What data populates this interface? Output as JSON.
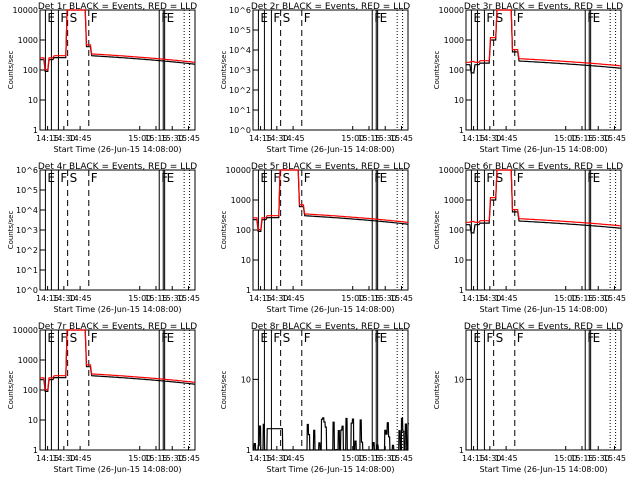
{
  "chart_data": [
    {
      "type": "line",
      "title": "Det 1r BLACK = Events, RED = LLD",
      "ylabel": "Counts/sec",
      "xlabel": "Start Time (26-Jun-15 14:08:00)",
      "x_ticks": [
        "14:15",
        "14:30",
        "14:45",
        "15:00",
        "15:15",
        "15:30",
        "15:45"
      ],
      "y_ticks": [
        "1",
        "10",
        "100",
        "1000",
        "10000"
      ],
      "y_scale": "log",
      "ylim": [
        1,
        10000
      ],
      "xlim_minutes": [
        14.15,
        15.48
      ],
      "flag_labels": [
        "E",
        "F",
        "S",
        "F",
        "F",
        "E"
      ],
      "profile": "flare",
      "series": [
        {
          "color": "#000000",
          "values": "events"
        },
        {
          "color": "#ff0000",
          "values": "lld"
        }
      ]
    },
    {
      "type": "line",
      "title": "Det 2r BLACK = Events, RED = LLD",
      "ylabel": "Counts/sec",
      "xlabel": "Start Time (26-Jun-15 14:08:00)",
      "x_ticks": [
        "14:15",
        "14:30",
        "14:45",
        "15:00",
        "15:15",
        "15:30",
        "15:45"
      ],
      "y_ticks": [
        "10^0",
        "10^1",
        "10^2",
        "10^3",
        "10^4",
        "10^5",
        "10^6"
      ],
      "y_scale": "log",
      "ylim": [
        1,
        1000000
      ],
      "flag_labels": [
        "E",
        "F",
        "S",
        "F",
        "F",
        "E"
      ],
      "profile": "empty",
      "series": []
    },
    {
      "type": "line",
      "title": "Det 3r BLACK = Events, RED = LLD",
      "ylabel": "Counts/sec",
      "xlabel": "Start Time (26-Jun-15 14:08:00)",
      "x_ticks": [
        "14:15",
        "14:30",
        "14:45",
        "15:00",
        "15:15",
        "15:30",
        "15:45"
      ],
      "y_ticks": [
        "1",
        "10",
        "100",
        "1000",
        "10000"
      ],
      "y_scale": "log",
      "ylim": [
        1,
        10000
      ],
      "flag_labels": [
        "E",
        "F",
        "S",
        "F",
        "F",
        "E"
      ],
      "profile": "high"
    },
    {
      "type": "line",
      "title": "Det 4r BLACK = Events, RED = LLD",
      "ylabel": "Counts/sec",
      "xlabel": "Start Time (26-Jun-15 14:08:00)",
      "x_ticks": [
        "14:15",
        "14:30",
        "14:45",
        "15:00",
        "15:15",
        "15:30",
        "15:45"
      ],
      "y_ticks": [
        "10^0",
        "10^1",
        "10^2",
        "10^3",
        "10^4",
        "10^5",
        "10^6"
      ],
      "y_scale": "log",
      "ylim": [
        1,
        1000000
      ],
      "flag_labels": [
        "E",
        "F",
        "S",
        "F",
        "F",
        "E"
      ],
      "profile": "empty",
      "series": []
    },
    {
      "type": "line",
      "title": "Det 5r BLACK = Events, RED = LLD",
      "ylabel": "Counts/sec",
      "xlabel": "Start Time (26-Jun-15 14:08:00)",
      "x_ticks": [
        "14:15",
        "14:30",
        "14:45",
        "15:00",
        "15:15",
        "15:30",
        "15:45"
      ],
      "y_ticks": [
        "1",
        "10",
        "100",
        "1000",
        "10000"
      ],
      "y_scale": "log",
      "ylim": [
        1,
        10000
      ],
      "flag_labels": [
        "E",
        "F",
        "S",
        "F",
        "F",
        "E"
      ],
      "profile": "flare"
    },
    {
      "type": "line",
      "title": "Det 6r BLACK = Events, RED = LLD",
      "ylabel": "Counts/sec",
      "xlabel": "Start Time (26-Jun-15 14:08:00)",
      "x_ticks": [
        "14:15",
        "14:30",
        "14:45",
        "15:00",
        "15:15",
        "15:30",
        "15:45"
      ],
      "y_ticks": [
        "1",
        "10",
        "100",
        "1000",
        "10000"
      ],
      "y_scale": "log",
      "ylim": [
        1,
        10000
      ],
      "flag_labels": [
        "E",
        "F",
        "S",
        "F",
        "F",
        "E"
      ],
      "profile": "high"
    },
    {
      "type": "line",
      "title": "Det 7r BLACK = Events, RED = LLD",
      "ylabel": "Counts/sec",
      "xlabel": "Start Time (26-Jun-15 14:08:00)",
      "x_ticks": [
        "14:15",
        "14:30",
        "14:45",
        "15:00",
        "15:15",
        "15:30",
        "15:45"
      ],
      "y_ticks": [
        "1",
        "10",
        "100",
        "1000",
        "10000"
      ],
      "y_scale": "log",
      "ylim": [
        1,
        10000
      ],
      "flag_labels": [
        "E",
        "F",
        "S",
        "F",
        "F",
        "E"
      ],
      "profile": "flare"
    },
    {
      "type": "line",
      "title": "Det 8r BLACK = Events, RED = LLD",
      "ylabel": "Counts/sec",
      "xlabel": "Start Time (26-Jun-15 14:08:00)",
      "x_ticks": [
        "14:15",
        "14:30",
        "14:45",
        "15:00",
        "15:15",
        "15:30",
        "15:45"
      ],
      "y_ticks": [
        "1",
        "10"
      ],
      "y_scale": "log",
      "ylim": [
        1,
        50
      ],
      "flag_labels": [
        "E",
        "F",
        "S",
        "F",
        "F",
        "E"
      ],
      "profile": "low"
    },
    {
      "type": "line",
      "title": "Det 9r BLACK = Events, RED = LLD",
      "ylabel": "Counts/sec",
      "xlabel": "Start Time (26-Jun-15 14:08:00)",
      "x_ticks": [
        "14:15",
        "14:30",
        "14:45",
        "15:00",
        "15:15",
        "15:30",
        "15:45"
      ],
      "y_ticks": [
        "1",
        "10"
      ],
      "y_scale": "log",
      "ylim": [
        1,
        50
      ],
      "flag_labels": [
        "E",
        "F",
        "S",
        "F",
        "F",
        "E"
      ],
      "profile": "empty",
      "series": []
    }
  ]
}
